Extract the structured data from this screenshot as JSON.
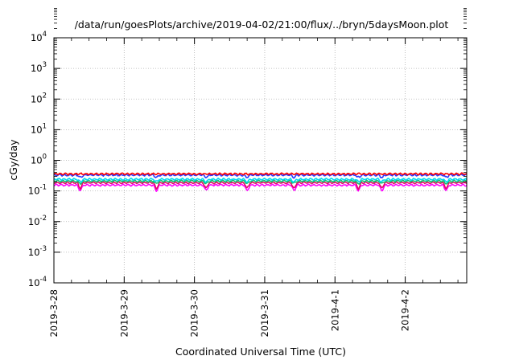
{
  "chart_data": {
    "type": "line",
    "title": "/data/run/goesPlots/archive/2019-04-02/21:00/flux/../bryn/5daysMoon.plot",
    "xlabel": "Coordinated Universal Time (UTC)",
    "ylabel": "cGy/day",
    "x_ticks": [
      "2019-3-28",
      "2019-3-29",
      "2019-3-30",
      "2019-3-31",
      "2019-4-1",
      "2019-4-2"
    ],
    "y_ticks": [
      {
        "base": "10",
        "exp": "4"
      },
      {
        "base": "10",
        "exp": "3"
      },
      {
        "base": "10",
        "exp": "2"
      },
      {
        "base": "10",
        "exp": "1"
      },
      {
        "base": "10",
        "exp": "0"
      },
      {
        "base": "10",
        "exp": "-1"
      },
      {
        "base": "10",
        "exp": "-2"
      },
      {
        "base": "10",
        "exp": "-3"
      },
      {
        "base": "10",
        "exp": "-4"
      }
    ],
    "y_scale": "log",
    "ylim": [
      0.0001,
      10000
    ],
    "xlim": [
      "2019-03-28T00:00",
      "2019-04-02T21:00"
    ],
    "grid": true,
    "series": [
      {
        "color": "#ff0000",
        "base": 0.36,
        "dips": false
      },
      {
        "color": "#2a3cff",
        "base": 0.33,
        "dips": true
      },
      {
        "color": "#00d8f0",
        "base": 0.24,
        "dips": true
      },
      {
        "color": "#12c070",
        "base": 0.21,
        "dips": true
      },
      {
        "color": "#e01060",
        "base": 0.185,
        "dips": true
      },
      {
        "color": "#ff00ff",
        "base": 0.155,
        "dips": true
      }
    ]
  }
}
